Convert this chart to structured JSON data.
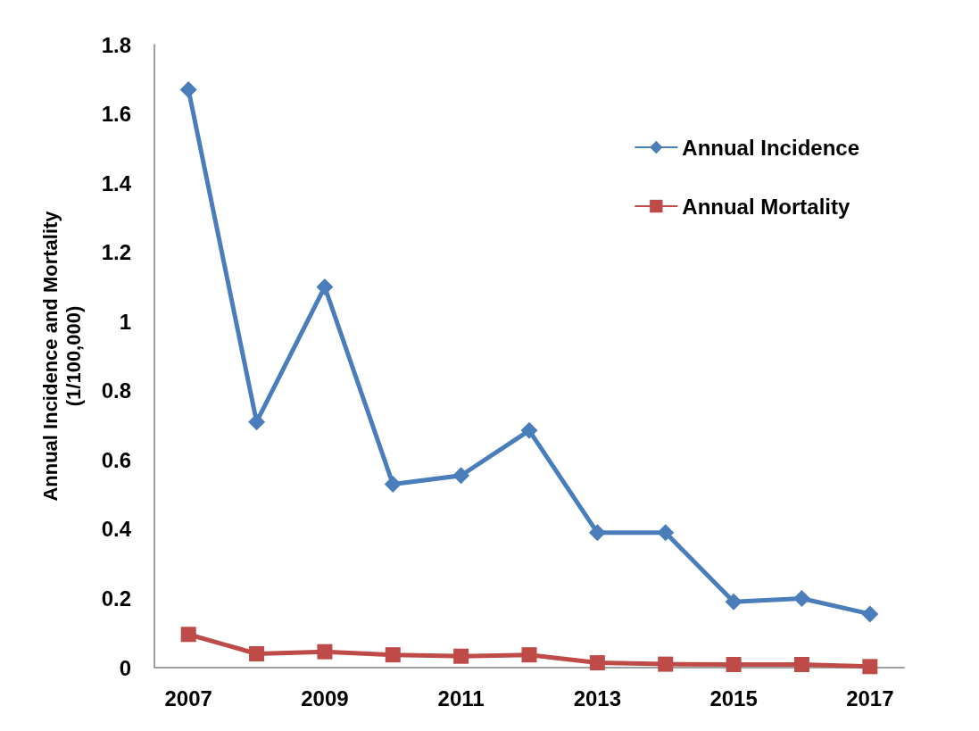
{
  "chart_data": {
    "type": "line",
    "ylabel": "Annual Incidence and Mortality\n(1/100,000)",
    "categories": [
      "2007",
      null,
      "2009",
      null,
      "2011",
      null,
      "2013",
      null,
      "2015",
      null,
      "2017"
    ],
    "ylim": [
      0,
      1.8
    ],
    "yticks": [
      0,
      0.2,
      0.4,
      0.6,
      0.8,
      1,
      1.2,
      1.4,
      1.6,
      1.8
    ],
    "grid": false,
    "legend": "top right",
    "series": [
      {
        "name": "Annual Incidence",
        "color": "#4a7ebb",
        "marker": "diamond",
        "values": [
          1.67,
          0.71,
          1.1,
          0.53,
          0.555,
          0.685,
          0.39,
          0.39,
          0.19,
          0.2,
          0.155
        ]
      },
      {
        "name": "Annual Mortality",
        "color": "#be4b48",
        "marker": "square",
        "values": [
          0.096,
          0.04,
          0.046,
          0.037,
          0.033,
          0.037,
          0.014,
          0.01,
          0.009,
          0.009,
          0.003
        ]
      }
    ]
  }
}
